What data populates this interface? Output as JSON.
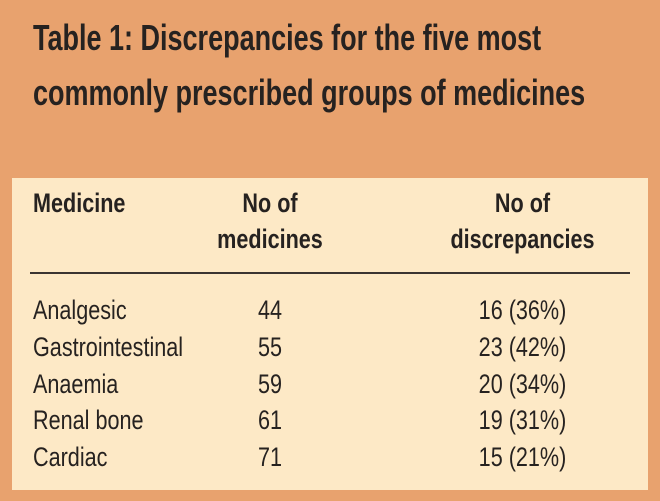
{
  "title": "Table 1: Discrepancies for the five most commonly prescribed groups of medicines",
  "table": {
    "headers": [
      "Medicine",
      "No of medicines",
      "No of discrepancies"
    ],
    "rows": [
      [
        "Analgesic",
        "44",
        "16 (36%)"
      ],
      [
        "Gastrointestinal",
        "55",
        "23 (42%)"
      ],
      [
        "Anaemia",
        "59",
        "20 (34%)"
      ],
      [
        "Renal bone",
        "61",
        "19 (31%)"
      ],
      [
        "Cardiac",
        "71",
        "15 (21%)"
      ]
    ]
  }
}
